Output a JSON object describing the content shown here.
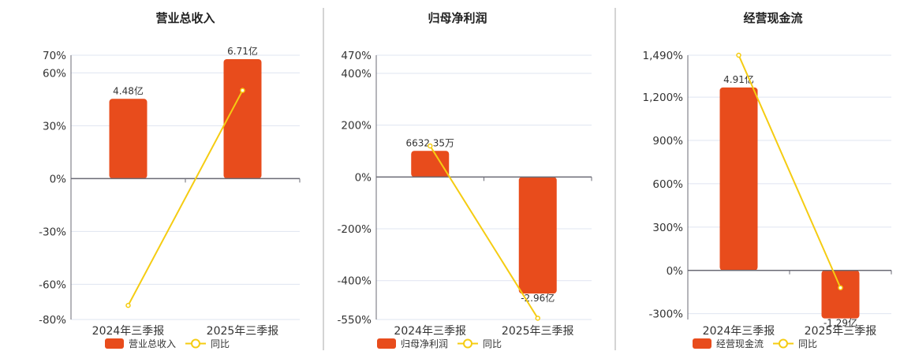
{
  "colors": {
    "bar": "#e84c1c",
    "line": "#f5cc12",
    "grid": "#dfe4f0",
    "axis": "#6b6b75",
    "text": "#333333"
  },
  "legend_line_label": "同比",
  "chart_data": [
    {
      "type": "bar+line",
      "title": "营业总收入",
      "categories": [
        "2024年三季报",
        "2025年三季报"
      ],
      "bar_series": {
        "name": "营业总收入",
        "values": [
          4.48,
          6.71
        ],
        "unit": "亿",
        "labels": [
          "4.48亿",
          "6.71亿"
        ]
      },
      "line_series": {
        "name": "同比",
        "values": [
          -72,
          50
        ],
        "unit": "%"
      },
      "yticks": [
        "70%",
        "60%",
        "30%",
        "0%",
        "-30%",
        "-60%",
        "-80%"
      ],
      "ytick_values": [
        70,
        60,
        30,
        0,
        -30,
        -60,
        -80
      ],
      "ylim": [
        -80,
        70
      ],
      "grid": true,
      "legend": "bottom"
    },
    {
      "type": "bar+line",
      "title": "归母净利润",
      "categories": [
        "2024年三季报",
        "2025年三季报"
      ],
      "bar_series": {
        "name": "归母净利润",
        "values": [
          0.663235,
          -2.96
        ],
        "unit": "亿",
        "labels": [
          "6632.35万",
          "-2.96亿"
        ]
      },
      "line_series": {
        "name": "同比",
        "values": [
          120,
          -545
        ],
        "unit": "%"
      },
      "yticks": [
        "470%",
        "400%",
        "200%",
        "0%",
        "-200%",
        "-400%",
        "-550%"
      ],
      "ytick_values": [
        470,
        400,
        200,
        0,
        -200,
        -400,
        -550
      ],
      "ylim": [
        -550,
        470
      ],
      "grid": true,
      "legend": "bottom"
    },
    {
      "type": "bar+line",
      "title": "经营现金流",
      "categories": [
        "2024年三季报",
        "2025年三季报"
      ],
      "bar_series": {
        "name": "经营现金流",
        "values": [
          4.91,
          -1.29
        ],
        "unit": "亿",
        "labels": [
          "4.91亿",
          "-1.29亿"
        ]
      },
      "line_series": {
        "name": "同比",
        "values": [
          1490,
          -120
        ],
        "unit": "%"
      },
      "yticks": [
        "1,490%",
        "1,200%",
        "900%",
        "600%",
        "300%",
        "0%",
        "-300%"
      ],
      "ytick_values": [
        1490,
        1200,
        900,
        600,
        300,
        0,
        -300
      ],
      "ylim": [
        -340,
        1490
      ],
      "grid": true,
      "legend": "bottom"
    }
  ]
}
